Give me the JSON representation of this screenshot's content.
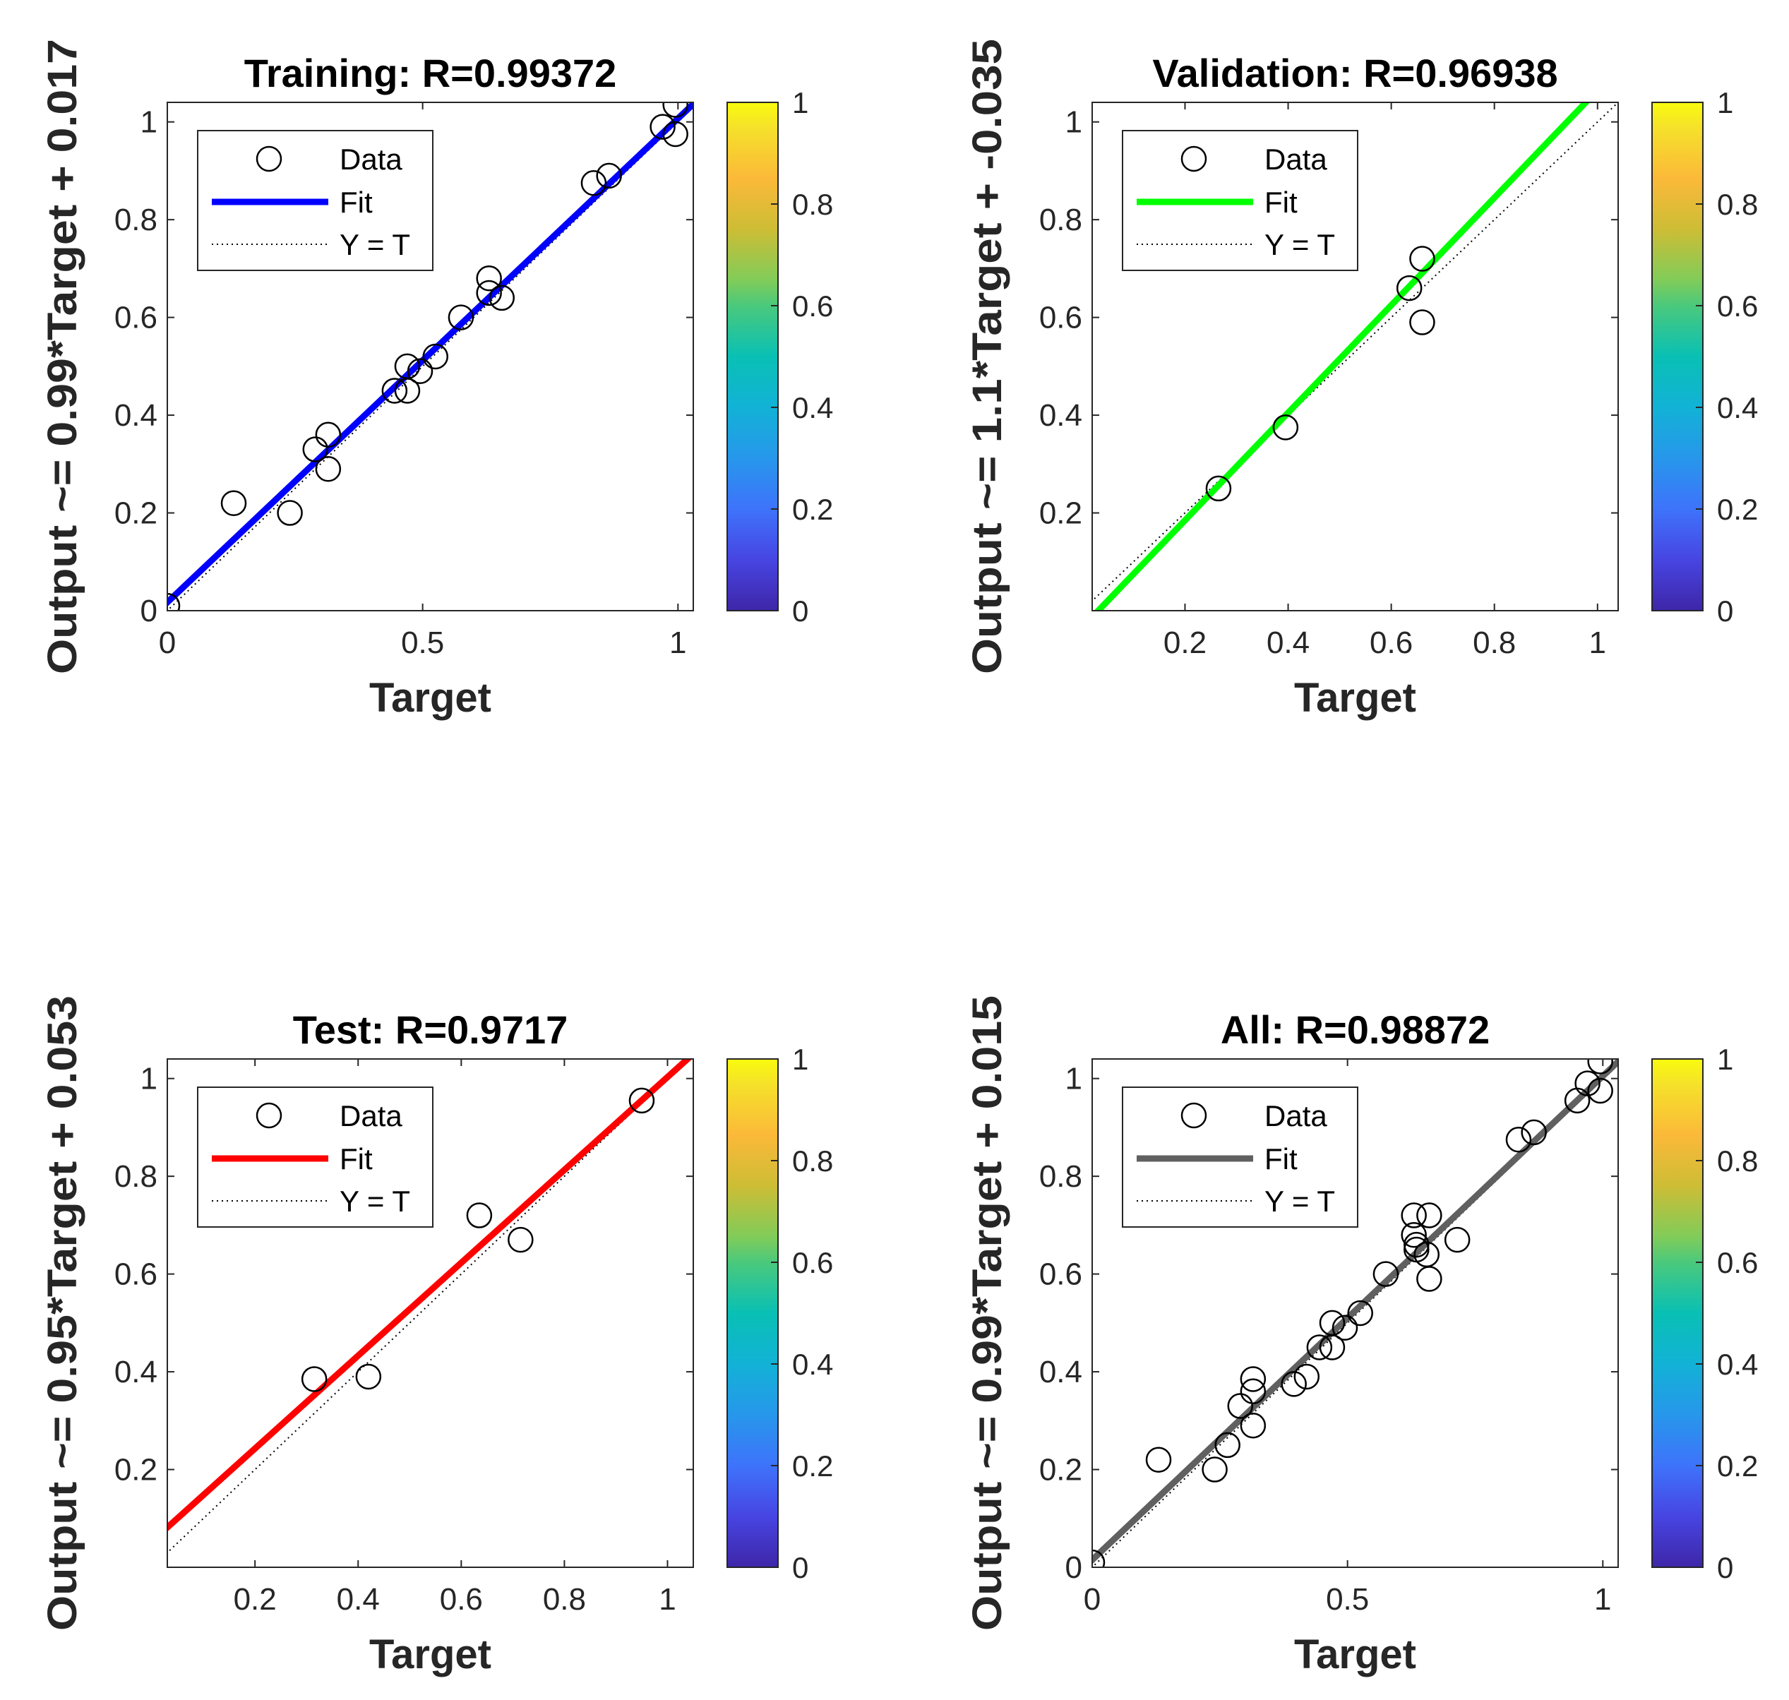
{
  "chart_data": [
    {
      "type": "scatter",
      "title": "Training: R=0.99372",
      "xlabel": "Target",
      "ylabel": "Output ~= 0.99*Target + 0.017",
      "xlim": [
        0,
        1.03
      ],
      "ylim": [
        0,
        1.04
      ],
      "xticks": [
        0,
        0.5,
        1
      ],
      "xtick_labels": [
        "0",
        "0.5",
        "1"
      ],
      "yticks": [
        0,
        0.2,
        0.4,
        0.6,
        0.8,
        1
      ],
      "ytick_labels": [
        "0",
        "0.2",
        "0.4",
        "0.6",
        "0.8",
        "1"
      ],
      "fit": {
        "slope": 0.99,
        "intercept": 0.017,
        "color": "#0000ff"
      },
      "legend": {
        "data": "Data",
        "fit": "Fit",
        "ideal": "Y = T",
        "position": "top-left"
      },
      "points": [
        [
          0.0,
          0.01
        ],
        [
          0.13,
          0.22
        ],
        [
          0.24,
          0.2
        ],
        [
          0.29,
          0.33
        ],
        [
          0.315,
          0.36
        ],
        [
          0.315,
          0.29
        ],
        [
          0.445,
          0.45
        ],
        [
          0.47,
          0.5
        ],
        [
          0.47,
          0.45
        ],
        [
          0.495,
          0.49
        ],
        [
          0.525,
          0.52
        ],
        [
          0.575,
          0.6
        ],
        [
          0.63,
          0.68
        ],
        [
          0.63,
          0.65
        ],
        [
          0.655,
          0.64
        ],
        [
          0.835,
          0.875
        ],
        [
          0.865,
          0.89
        ],
        [
          0.97,
          0.99
        ],
        [
          0.995,
          1.035
        ],
        [
          0.995,
          0.975
        ]
      ],
      "colorbar": {
        "ticks": [
          "0",
          "0.2",
          "0.4",
          "0.6",
          "0.8",
          "1"
        ]
      }
    },
    {
      "type": "scatter",
      "title": "Validation: R=0.96938",
      "xlabel": "Target",
      "ylabel": "Output ~= 1.1*Target + -0.035",
      "xlim": [
        0.02,
        1.04
      ],
      "ylim": [
        0,
        1.04
      ],
      "xticks": [
        0.2,
        0.4,
        0.6,
        0.8,
        1
      ],
      "xtick_labels": [
        "0.2",
        "0.4",
        "0.6",
        "0.8",
        "1"
      ],
      "yticks": [
        0.2,
        0.4,
        0.6,
        0.8,
        1
      ],
      "ytick_labels": [
        "0.2",
        "0.4",
        "0.6",
        "0.8",
        "1"
      ],
      "fit": {
        "slope": 1.1,
        "intercept": -0.035,
        "color": "#00ff00"
      },
      "legend": {
        "data": "Data",
        "fit": "Fit",
        "ideal": "Y = T",
        "position": "top-left"
      },
      "points": [
        [
          0.265,
          0.25
        ],
        [
          0.395,
          0.375
        ],
        [
          0.635,
          0.66
        ],
        [
          0.66,
          0.72
        ],
        [
          0.66,
          0.59
        ]
      ],
      "colorbar": {
        "ticks": [
          "0",
          "0.2",
          "0.4",
          "0.6",
          "0.8",
          "1"
        ]
      }
    },
    {
      "type": "scatter",
      "title": "Test: R=0.9717",
      "xlabel": "Target",
      "ylabel": "Output ~= 0.95*Target + 0.053",
      "xlim": [
        0.03,
        1.05
      ],
      "ylim": [
        0,
        1.04
      ],
      "xticks": [
        0.2,
        0.4,
        0.6,
        0.8,
        1
      ],
      "xtick_labels": [
        "0.2",
        "0.4",
        "0.6",
        "0.8",
        "1"
      ],
      "yticks": [
        0.2,
        0.4,
        0.6,
        0.8,
        1
      ],
      "ytick_labels": [
        "0.2",
        "0.4",
        "0.6",
        "0.8",
        "1"
      ],
      "fit": {
        "slope": 0.95,
        "intercept": 0.053,
        "color": "#ff0000"
      },
      "legend": {
        "data": "Data",
        "fit": "Fit",
        "ideal": "Y = T",
        "position": "top-left"
      },
      "points": [
        [
          0.315,
          0.385
        ],
        [
          0.42,
          0.39
        ],
        [
          0.635,
          0.72
        ],
        [
          0.715,
          0.67
        ],
        [
          0.95,
          0.955
        ]
      ],
      "colorbar": {
        "ticks": [
          "0",
          "0.2",
          "0.4",
          "0.6",
          "0.8",
          "1"
        ]
      }
    },
    {
      "type": "scatter",
      "title": "All: R=0.98872",
      "xlabel": "Target",
      "ylabel": "Output ~= 0.99*Target + 0.015",
      "xlim": [
        0,
        1.03
      ],
      "ylim": [
        0,
        1.04
      ],
      "xticks": [
        0,
        0.5,
        1
      ],
      "xtick_labels": [
        "0",
        "0.5",
        "1"
      ],
      "yticks": [
        0,
        0.2,
        0.4,
        0.6,
        0.8,
        1
      ],
      "ytick_labels": [
        "0",
        "0.2",
        "0.4",
        "0.6",
        "0.8",
        "1"
      ],
      "fit": {
        "slope": 0.99,
        "intercept": 0.015,
        "color": "#606060"
      },
      "legend": {
        "data": "Data",
        "fit": "Fit",
        "ideal": "Y = T",
        "position": "top-left"
      },
      "points": [
        [
          0.0,
          0.01
        ],
        [
          0.13,
          0.22
        ],
        [
          0.24,
          0.2
        ],
        [
          0.265,
          0.25
        ],
        [
          0.29,
          0.33
        ],
        [
          0.315,
          0.385
        ],
        [
          0.315,
          0.36
        ],
        [
          0.315,
          0.29
        ],
        [
          0.395,
          0.375
        ],
        [
          0.42,
          0.39
        ],
        [
          0.445,
          0.45
        ],
        [
          0.47,
          0.5
        ],
        [
          0.47,
          0.45
        ],
        [
          0.495,
          0.49
        ],
        [
          0.525,
          0.52
        ],
        [
          0.575,
          0.6
        ],
        [
          0.63,
          0.72
        ],
        [
          0.63,
          0.68
        ],
        [
          0.635,
          0.66
        ],
        [
          0.635,
          0.65
        ],
        [
          0.655,
          0.64
        ],
        [
          0.66,
          0.72
        ],
        [
          0.66,
          0.59
        ],
        [
          0.715,
          0.67
        ],
        [
          0.835,
          0.875
        ],
        [
          0.865,
          0.89
        ],
        [
          0.95,
          0.955
        ],
        [
          0.97,
          0.99
        ],
        [
          0.995,
          1.035
        ],
        [
          0.995,
          0.975
        ]
      ],
      "colorbar": {
        "ticks": [
          "0",
          "0.2",
          "0.4",
          "0.6",
          "0.8",
          "1"
        ]
      }
    }
  ]
}
